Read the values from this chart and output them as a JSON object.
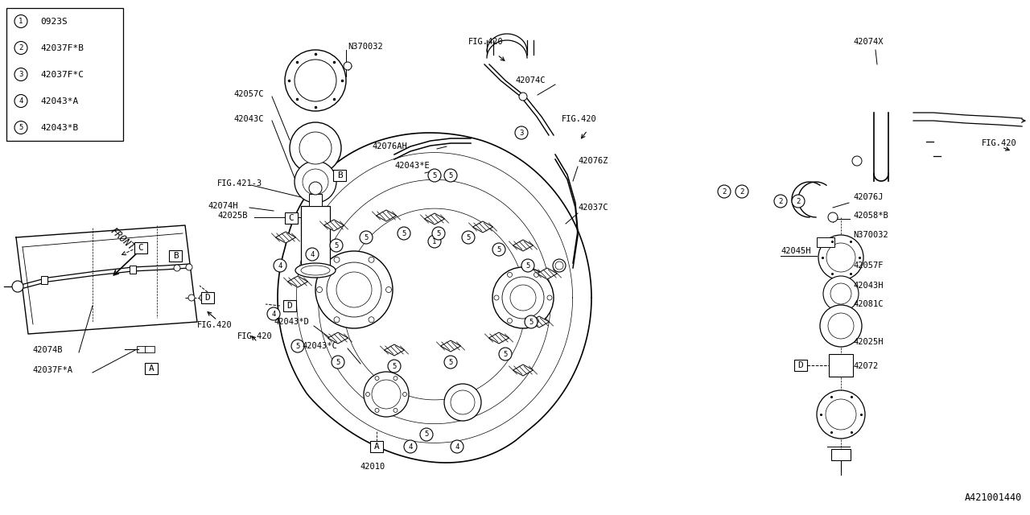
{
  "bg_color": "#ffffff",
  "line_color": "#000000",
  "text_color": "#000000",
  "fig_id": "A421001440",
  "legend_items": [
    {
      "num": "1",
      "code": "0923S"
    },
    {
      "num": "2",
      "code": "42037F*B"
    },
    {
      "num": "3",
      "code": "42037F*C"
    },
    {
      "num": "4",
      "code": "42043*A"
    },
    {
      "num": "5",
      "code": "42043*B"
    }
  ]
}
